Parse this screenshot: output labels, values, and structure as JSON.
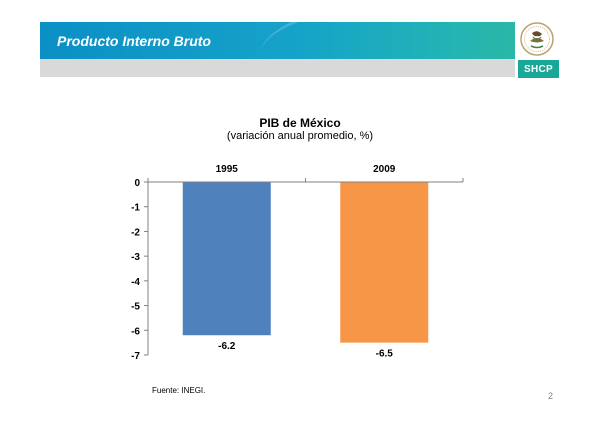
{
  "header": {
    "title": "Producto Interno Bruto",
    "badge": "SHCP",
    "band_color": "#0b8fc6",
    "badge_color": "#19a797",
    "logo_icon": "mexico-coat-of-arms-icon"
  },
  "chart_data": {
    "type": "bar",
    "title": "PIB de México",
    "subtitle": "(variación anual promedio, %)",
    "categories": [
      "1995",
      "2009"
    ],
    "values": [
      -6.2,
      -6.5
    ],
    "data_labels": [
      "-6.2",
      "-6.5"
    ],
    "colors": [
      "#4f81bd",
      "#f79646"
    ],
    "ylim": [
      -7,
      0
    ],
    "yticks": [
      "0",
      "-1",
      "-2",
      "-3",
      "-4",
      "-5",
      "-6",
      "-7"
    ],
    "category_labels_position": "top",
    "grid": false,
    "legend": "none"
  },
  "footer": {
    "source": "Fuente: INEGI.",
    "page_number": "2"
  }
}
